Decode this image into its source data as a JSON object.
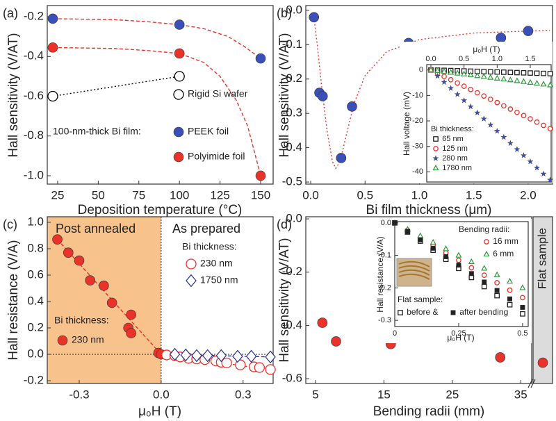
{
  "chart_data": [
    {
      "type": "scatter",
      "label": "(a)",
      "xlabel": "Deposition temperature (°C)",
      "ylabel": "Hall sensitivity (V/AT)",
      "xlim": [
        18.6,
        157.7
      ],
      "ylim": [
        -1.042,
        -0.144
      ],
      "xticks": [
        25,
        50,
        75,
        100,
        125,
        150
      ],
      "yticks": [
        -0.2,
        -0.4,
        -0.6,
        -0.8,
        {
          "value": -1.0,
          "label": "-1.0"
        }
      ],
      "annotation": "100-nm-thick Bi film:",
      "series": [
        {
          "x": [
            22,
            60,
            80,
            100,
            115,
            130,
            140,
            150
          ],
          "values": [
            -0.21,
            -0.215,
            -0.225,
            -0.24,
            -0.26,
            -0.3,
            -0.35,
            -0.41
          ],
          "color": "#e8322a",
          "marker": "none",
          "line": "dashed"
        },
        {
          "x": [
            22,
            60,
            80,
            100,
            115,
            125,
            135,
            142,
            150
          ],
          "values": [
            -0.355,
            -0.36,
            -0.37,
            -0.385,
            -0.43,
            -0.5,
            -0.62,
            -0.75,
            -1.0
          ],
          "color": "#e8322a",
          "marker": "none",
          "line": "dashed"
        },
        {
          "name": "Rigid Si wafer",
          "x": [
            22,
            100
          ],
          "values": [
            -0.6,
            -0.5
          ],
          "color": "#000000",
          "marker": "circle",
          "filled": false,
          "line": "dotted"
        },
        {
          "name": "PEEK foil",
          "x": [
            22,
            100,
            150
          ],
          "values": [
            -0.21,
            -0.24,
            -0.41
          ],
          "color": "#3a4fb8",
          "marker": "circle",
          "filled": true
        },
        {
          "name": "Polyimide foil",
          "x": [
            22,
            100,
            150
          ],
          "values": [
            -0.355,
            -0.385,
            -1.0
          ],
          "color": "#e8322a",
          "marker": "circle",
          "filled": true
        }
      ]
    },
    {
      "type": "scatter",
      "label": "(b)",
      "xlabel": "Bi film thickness (μm)",
      "ylabel": "Hall sensitivity (V/AT)",
      "xlim": [
        -0.045,
        2.224
      ],
      "ylim": [
        -0.506,
        0.014
      ],
      "xticks": [
        {
          "value": 0,
          "label": "0.0"
        },
        0.5,
        {
          "value": 1,
          "label": "1.0"
        },
        1.5,
        {
          "value": 2,
          "label": "2.0"
        }
      ],
      "yticks": [
        {
          "value": 0,
          "label": "0.0"
        },
        -0.1,
        -0.2,
        -0.3,
        -0.4,
        -0.5
      ],
      "series": [
        {
          "x": [
            0.03,
            0.06,
            0.1,
            0.15,
            0.2,
            0.23,
            0.27,
            0.33,
            0.4,
            0.5,
            0.7,
            1.0,
            1.5,
            2.2
          ],
          "values": [
            -0.02,
            -0.1,
            -0.22,
            -0.35,
            -0.44,
            -0.46,
            -0.44,
            -0.36,
            -0.27,
            -0.19,
            -0.12,
            -0.085,
            -0.066,
            -0.058
          ],
          "color": "#e8322a",
          "marker": "none",
          "line": "dotted"
        },
        {
          "x": [
            0.03,
            0.08,
            0.11,
            0.28,
            0.38,
            0.9,
            1.75,
            2.0
          ],
          "values": [
            -0.02,
            -0.24,
            -0.25,
            -0.43,
            -0.28,
            -0.095,
            -0.08,
            -0.06
          ],
          "color": "#3a4fb8",
          "marker": "circle",
          "filled": true
        }
      ]
    },
    {
      "type": "scatter",
      "xaxis_position": "top",
      "xlabel": "μ₀H (T)",
      "ylabel": "Hall voltage (mV)",
      "xlim": [
        -0.063,
        1.815
      ],
      "ylim": [
        -44,
        2.1
      ],
      "xticks": [
        {
          "value": 0,
          "label": "0.0"
        },
        0.5,
        {
          "value": 1,
          "label": "1.0"
        },
        1.5
      ],
      "yticks": [
        0,
        -10,
        -20,
        -30,
        -40
      ],
      "annotation": "Bi thickness:",
      "x": [
        0,
        0.1,
        0.2,
        0.3,
        0.4,
        0.5,
        0.6,
        0.7,
        0.8,
        0.9,
        1.0,
        1.1,
        1.2,
        1.3,
        1.4,
        1.5,
        1.6,
        1.7,
        1.8
      ],
      "series": [
        {
          "name": "65 nm",
          "values": [
            0,
            -0.08,
            -0.16,
            -0.24,
            -0.32,
            -0.4,
            -0.48,
            -0.56,
            -0.64,
            -0.72,
            -0.8,
            -0.88,
            -0.96,
            -1.04,
            -1.12,
            -1.2,
            -1.28,
            -1.36,
            -1.44
          ],
          "color": "#222222",
          "marker": "square",
          "filled": false
        },
        {
          "name": "125 nm",
          "values": [
            0,
            -1.28,
            -2.56,
            -3.84,
            -5.12,
            -6.4,
            -7.68,
            -8.96,
            -10.24,
            -11.52,
            -12.8,
            -14.08,
            -15.36,
            -16.64,
            -17.92,
            -19.2,
            -20.48,
            -21.76,
            -23.04
          ],
          "color": "#e8322a",
          "marker": "circle",
          "filled": false
        },
        {
          "name": "280 nm",
          "values": [
            0,
            -2.4,
            -4.8,
            -7.2,
            -9.6,
            -12,
            -14.4,
            -16.8,
            -19.2,
            -21.6,
            -24,
            -26.4,
            -28.8,
            -31.2,
            -33.6,
            -36,
            -38.4,
            -40.8,
            -43.2
          ],
          "color": "#3a4fb8",
          "marker": "star",
          "filled": true
        },
        {
          "name": "1780 nm",
          "values": [
            0,
            -0.33,
            -0.66,
            -0.99,
            -1.32,
            -1.65,
            -1.98,
            -2.31,
            -2.64,
            -2.97,
            -3.3,
            -3.63,
            -3.96,
            -4.29,
            -4.62,
            -4.95,
            -5.28,
            -5.61,
            -5.94
          ],
          "color": "#2e9a3a",
          "marker": "triangle",
          "filled": false
        }
      ]
    },
    {
      "type": "scatter",
      "label": "(c)",
      "xlabel": "μ₀H (T)",
      "ylabel": "Hall resistance (V/A)",
      "xlim": [
        -0.417,
        0.41
      ],
      "ylim": [
        -0.221,
        1.042
      ],
      "xticks": [
        -0.3,
        {
          "value": 0,
          "label": "0.0"
        },
        0.3
      ],
      "yticks": [
        -0.2,
        {
          "value": 0,
          "label": "0.0"
        },
        0.2,
        0.4,
        0.6,
        0.8,
        {
          "value": 1,
          "label": "1.0"
        }
      ],
      "shade_until_x": 0,
      "shade_color": "#f8c28c",
      "zero_lines": true,
      "annotations": [
        "Post annealed",
        "As prepared",
        "Bi thickness:",
        "Bi thickness:"
      ],
      "series": [
        {
          "x": [
            -0.38,
            0
          ],
          "values": [
            0.87,
            0
          ],
          "color": "#e8322a",
          "marker": "none",
          "line": "dashed"
        },
        {
          "x": [
            0,
            0.41
          ],
          "values": [
            0,
            -0.12
          ],
          "color": "#e8322a",
          "marker": "none",
          "line": "dashed"
        },
        {
          "x": [
            0,
            0.41
          ],
          "values": [
            0,
            -0.02
          ],
          "color": "#2a2f8f",
          "marker": "none",
          "line": "dashed"
        },
        {
          "name": "230 nm",
          "x": [
            -0.38,
            -0.34,
            -0.3,
            -0.26,
            -0.21,
            -0.18,
            -0.11,
            -0.12,
            -0.11,
            -0.01,
            0
          ],
          "values": [
            0.87,
            0.77,
            0.71,
            0.56,
            0.52,
            0.39,
            0.3,
            0.2,
            0.16,
            0.01,
            0
          ],
          "color": "#e8322a",
          "marker": "circle",
          "filled": true
        },
        {
          "name": "230 nm",
          "x": [
            0.02,
            0.05,
            0.07,
            0.1,
            0.13,
            0.16,
            0.2,
            0.22,
            0.24,
            0.29,
            0.34,
            0.36,
            0.4
          ],
          "values": [
            -0.005,
            -0.01,
            -0.02,
            -0.03,
            -0.035,
            -0.04,
            -0.05,
            -0.06,
            -0.065,
            -0.08,
            -0.095,
            -0.1,
            -0.115
          ],
          "color": "#e8322a",
          "marker": "circle",
          "filled": false
        },
        {
          "name": "1750 nm",
          "x": [
            0.05,
            0.09,
            0.13,
            0.17,
            0.22,
            0.28,
            0.33,
            0.4
          ],
          "values": [
            0,
            -0.005,
            -0.01,
            -0.01,
            -0.01,
            -0.015,
            -0.015,
            -0.02
          ],
          "color": "#2a2f8f",
          "marker": "diamond",
          "filled": false
        }
      ]
    },
    {
      "type": "scatter",
      "label": "(d)",
      "xlabel": "Bending radii (mm)",
      "ylabel": "Hall sensitivity (V/AT)",
      "xlim": [
        3.58,
        36.6
      ],
      "ylim": [
        -0.618,
        0.008
      ],
      "xticks": [
        5,
        15,
        25,
        35
      ],
      "yticks": [
        {
          "value": 0,
          "label": "0.0"
        },
        -0.2,
        -0.4,
        -0.6
      ],
      "flat_sample": {
        "label": "Flat sample",
        "value": -0.54,
        "color": "#dcdcdc"
      },
      "series": [
        {
          "x": [
            6,
            8,
            16,
            32
          ],
          "values": [
            -0.39,
            -0.46,
            -0.47,
            -0.52
          ],
          "color": "#e8322a",
          "marker": "circle",
          "filled": true
        }
      ]
    },
    {
      "type": "scatter",
      "xlabel": "μ₀H (T)",
      "ylabel": "Hall resistance (V/A)",
      "xlim": [
        0,
        0.522
      ],
      "ylim": [
        -0.319,
        0.004
      ],
      "xticks": [
        0,
        0.25,
        0.5
      ],
      "yticks": [
        {
          "value": 0,
          "label": "0.0"
        },
        -0.1,
        -0.2,
        -0.3
      ],
      "annotations": [
        "Bending radii:",
        "Flat sample:"
      ],
      "x": [
        0,
        0.05,
        0.1,
        0.15,
        0.2,
        0.25,
        0.3,
        0.35,
        0.4,
        0.45,
        0.5
      ],
      "series": [
        {
          "name": "16 mm",
          "values": [
            0,
            -0.023,
            -0.046,
            -0.069,
            -0.092,
            -0.115,
            -0.138,
            -0.161,
            -0.184,
            -0.207,
            -0.23
          ],
          "color": "#e8322a",
          "marker": "circle",
          "filled": false
        },
        {
          "name": "6 mm",
          "values": [
            0,
            -0.02,
            -0.04,
            -0.06,
            -0.08,
            -0.1,
            -0.12,
            -0.14,
            -0.16,
            -0.18,
            -0.2
          ],
          "color": "#2e9a3a",
          "marker": "triangle",
          "filled": false
        },
        {
          "name": "before &",
          "values": [
            0,
            -0.028,
            -0.056,
            -0.084,
            -0.112,
            -0.14,
            -0.168,
            -0.196,
            -0.224,
            -0.252,
            -0.28
          ],
          "color": "#222222",
          "marker": "square",
          "filled": false
        },
        {
          "name": "after bending",
          "values": [
            0,
            -0.026,
            -0.052,
            -0.078,
            -0.104,
            -0.13,
            -0.156,
            -0.182,
            -0.208,
            -0.234,
            -0.26
          ],
          "color": "#222222",
          "marker": "square",
          "filled": true
        }
      ]
    }
  ]
}
